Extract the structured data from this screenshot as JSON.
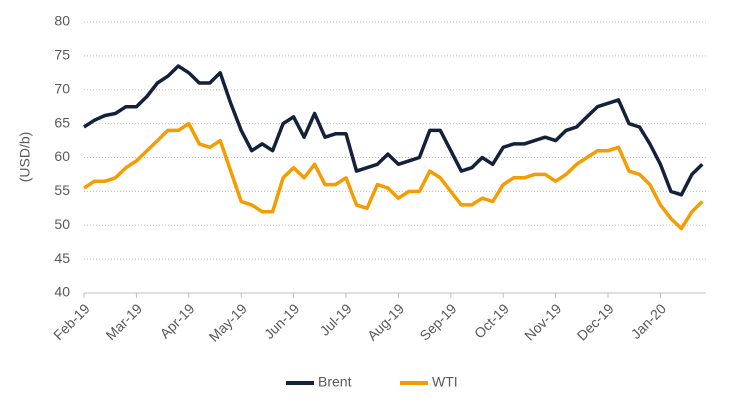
{
  "chart_data": {
    "type": "line",
    "y_label": "(USD/b)",
    "x": [
      0,
      0.2,
      0.4,
      0.6,
      0.8,
      1,
      1.2,
      1.4,
      1.6,
      1.8,
      2,
      2.2,
      2.4,
      2.6,
      2.8,
      3,
      3.2,
      3.4,
      3.6,
      3.8,
      4,
      4.2,
      4.4,
      4.6,
      4.8,
      5,
      5.2,
      5.4,
      5.6,
      5.8,
      6,
      6.2,
      6.4,
      6.6,
      6.8,
      7,
      7.2,
      7.4,
      7.6,
      7.8,
      8,
      8.2,
      8.4,
      8.6,
      8.8,
      9,
      9.2,
      9.4,
      9.6,
      9.8,
      10,
      10.2,
      10.4,
      10.6,
      10.8,
      11,
      11.2,
      11.4,
      11.6,
      11.8
    ],
    "series": [
      {
        "name": "Brent",
        "color": "#14213d",
        "values": [
          64.5,
          65.5,
          66.2,
          66.5,
          67.5,
          67.5,
          69,
          71,
          72,
          73.5,
          72.5,
          71,
          71,
          72.5,
          68,
          64,
          61,
          62,
          61,
          65,
          66,
          63,
          66.5,
          63,
          63.5,
          63.5,
          58,
          58.5,
          59,
          60.5,
          59,
          59.5,
          60,
          64,
          64,
          61,
          58,
          58.5,
          60,
          59,
          61.5,
          62,
          62,
          62.5,
          63,
          62.5,
          64,
          64.5,
          66,
          67.5,
          68,
          68.5,
          65,
          64.5,
          62,
          59,
          55,
          54.5,
          57.5,
          59
        ]
      },
      {
        "name": "WTI",
        "color": "#f59c00",
        "values": [
          55.5,
          56.5,
          56.5,
          57,
          58.5,
          59.5,
          61,
          62.5,
          64,
          64,
          65,
          62,
          61.5,
          62.5,
          58,
          53.5,
          53,
          52,
          52,
          57,
          58.5,
          57,
          59,
          56,
          56,
          57,
          53,
          52.5,
          56,
          55.5,
          54,
          55,
          55,
          58,
          57,
          55,
          53,
          53,
          54,
          53.5,
          56,
          57,
          57,
          57.5,
          57.5,
          56.5,
          57.5,
          59,
          60,
          61,
          61,
          61.5,
          58,
          57.5,
          56,
          53,
          51,
          49.5,
          52,
          53.5
        ]
      }
    ],
    "xlim": [
      0,
      11.87
    ],
    "xticks": [
      {
        "value": 0,
        "label": "Feb-19"
      },
      {
        "value": 1,
        "label": "Mar-19"
      },
      {
        "value": 2,
        "label": "Apr-19"
      },
      {
        "value": 3,
        "label": "May-19"
      },
      {
        "value": 4,
        "label": "Jun-19"
      },
      {
        "value": 5,
        "label": "Jul-19"
      },
      {
        "value": 6,
        "label": "Aug-19"
      },
      {
        "value": 7,
        "label": "Sep-19"
      },
      {
        "value": 8,
        "label": "Oct-19"
      },
      {
        "value": 9,
        "label": "Nov-19"
      },
      {
        "value": 10,
        "label": "Dec-19"
      },
      {
        "value": 11,
        "label": "Jan-20"
      }
    ],
    "ylim": [
      40,
      80
    ],
    "yticks": [
      40,
      45,
      50,
      55,
      60,
      65,
      70,
      75,
      80
    ],
    "grid": true,
    "legend": "bottom"
  }
}
